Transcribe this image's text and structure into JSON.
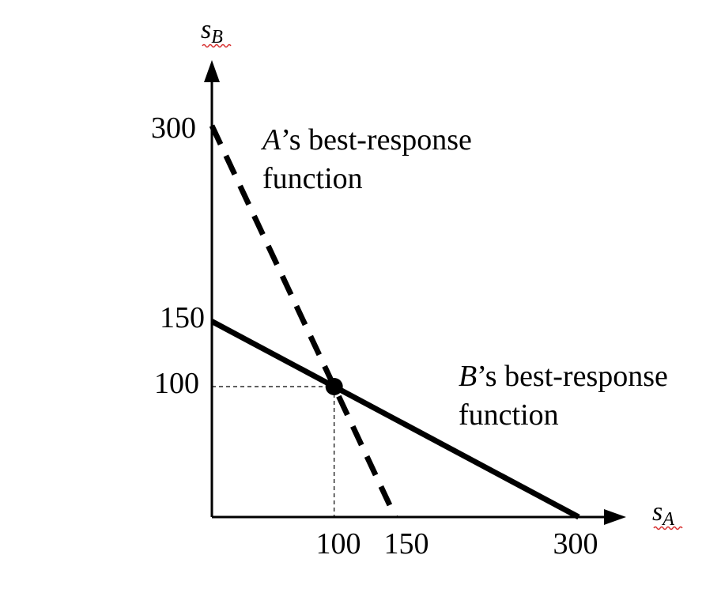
{
  "chart_data": {
    "type": "line",
    "xlabel": {
      "base": "s",
      "sub": "A"
    },
    "ylabel": {
      "base": "s",
      "sub": "B"
    },
    "xlim": [
      0,
      300
    ],
    "ylim": [
      0,
      300
    ],
    "grid": false,
    "x_ticks": [
      {
        "value": 100,
        "label": "100"
      },
      {
        "value": 150,
        "label": "150"
      },
      {
        "value": 300,
        "label": "300"
      }
    ],
    "y_ticks": [
      {
        "value": 100,
        "label": "100"
      },
      {
        "value": 150,
        "label": "150"
      },
      {
        "value": 300,
        "label": "300"
      }
    ],
    "series": [
      {
        "id": "A",
        "style": "dashed",
        "x": [
          0,
          150
        ],
        "y": [
          300,
          0
        ],
        "label": {
          "player": "A",
          "rest_line1": "’s best-response",
          "line2": "function"
        }
      },
      {
        "id": "B",
        "style": "solid",
        "x": [
          0,
          300
        ],
        "y": [
          150,
          0
        ],
        "label": {
          "player": "B",
          "rest_line1": "’s best-response",
          "line2": "function"
        }
      }
    ],
    "equilibrium": {
      "x": 100,
      "y": 100
    },
    "colors": {
      "lines": "#000000",
      "spellcheck_underline": "#d62c2c"
    }
  }
}
